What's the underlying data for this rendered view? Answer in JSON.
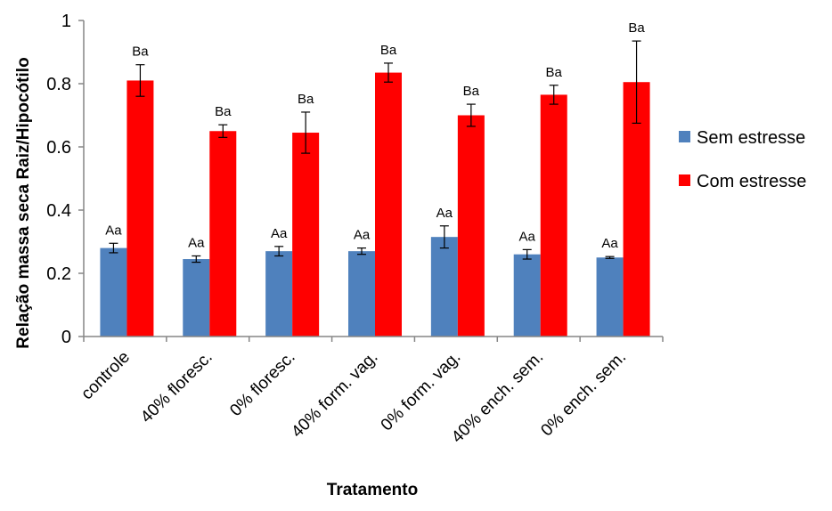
{
  "chart_data": {
    "type": "bar",
    "xlabel": "Tratamento",
    "ylabel": "Relação massa seca Raiz/Hipocótilo",
    "ylim": [
      0,
      1
    ],
    "yticks": [
      "0",
      "0.2",
      "0.4",
      "0.6",
      "0.8",
      "1"
    ],
    "categories": [
      "controle",
      "40% floresc.",
      "0% floresc.",
      "40% form. vag.",
      "0% form. vag.",
      "40% ench. sem.",
      "0% ench. sem."
    ],
    "series": [
      {
        "name": "Sem estresse",
        "color": "#4f81bd",
        "values": [
          0.28,
          0.245,
          0.27,
          0.27,
          0.315,
          0.26,
          0.25
        ],
        "errors": [
          0.015,
          0.01,
          0.015,
          0.01,
          0.035,
          0.015,
          0.003
        ],
        "labels": [
          "Aa",
          "Aa",
          "Aa",
          "Aa",
          "Aa",
          "Aa",
          "Aa"
        ]
      },
      {
        "name": "Com estresse",
        "color": "#ff0000",
        "values": [
          0.81,
          0.65,
          0.645,
          0.835,
          0.7,
          0.765,
          0.805
        ],
        "errors": [
          0.05,
          0.02,
          0.065,
          0.03,
          0.035,
          0.03,
          0.13
        ],
        "labels": [
          "Ba",
          "Ba",
          "Ba",
          "Ba",
          "Ba",
          "Ba",
          "Ba"
        ]
      }
    ],
    "legend_position": "right",
    "grid": false
  }
}
